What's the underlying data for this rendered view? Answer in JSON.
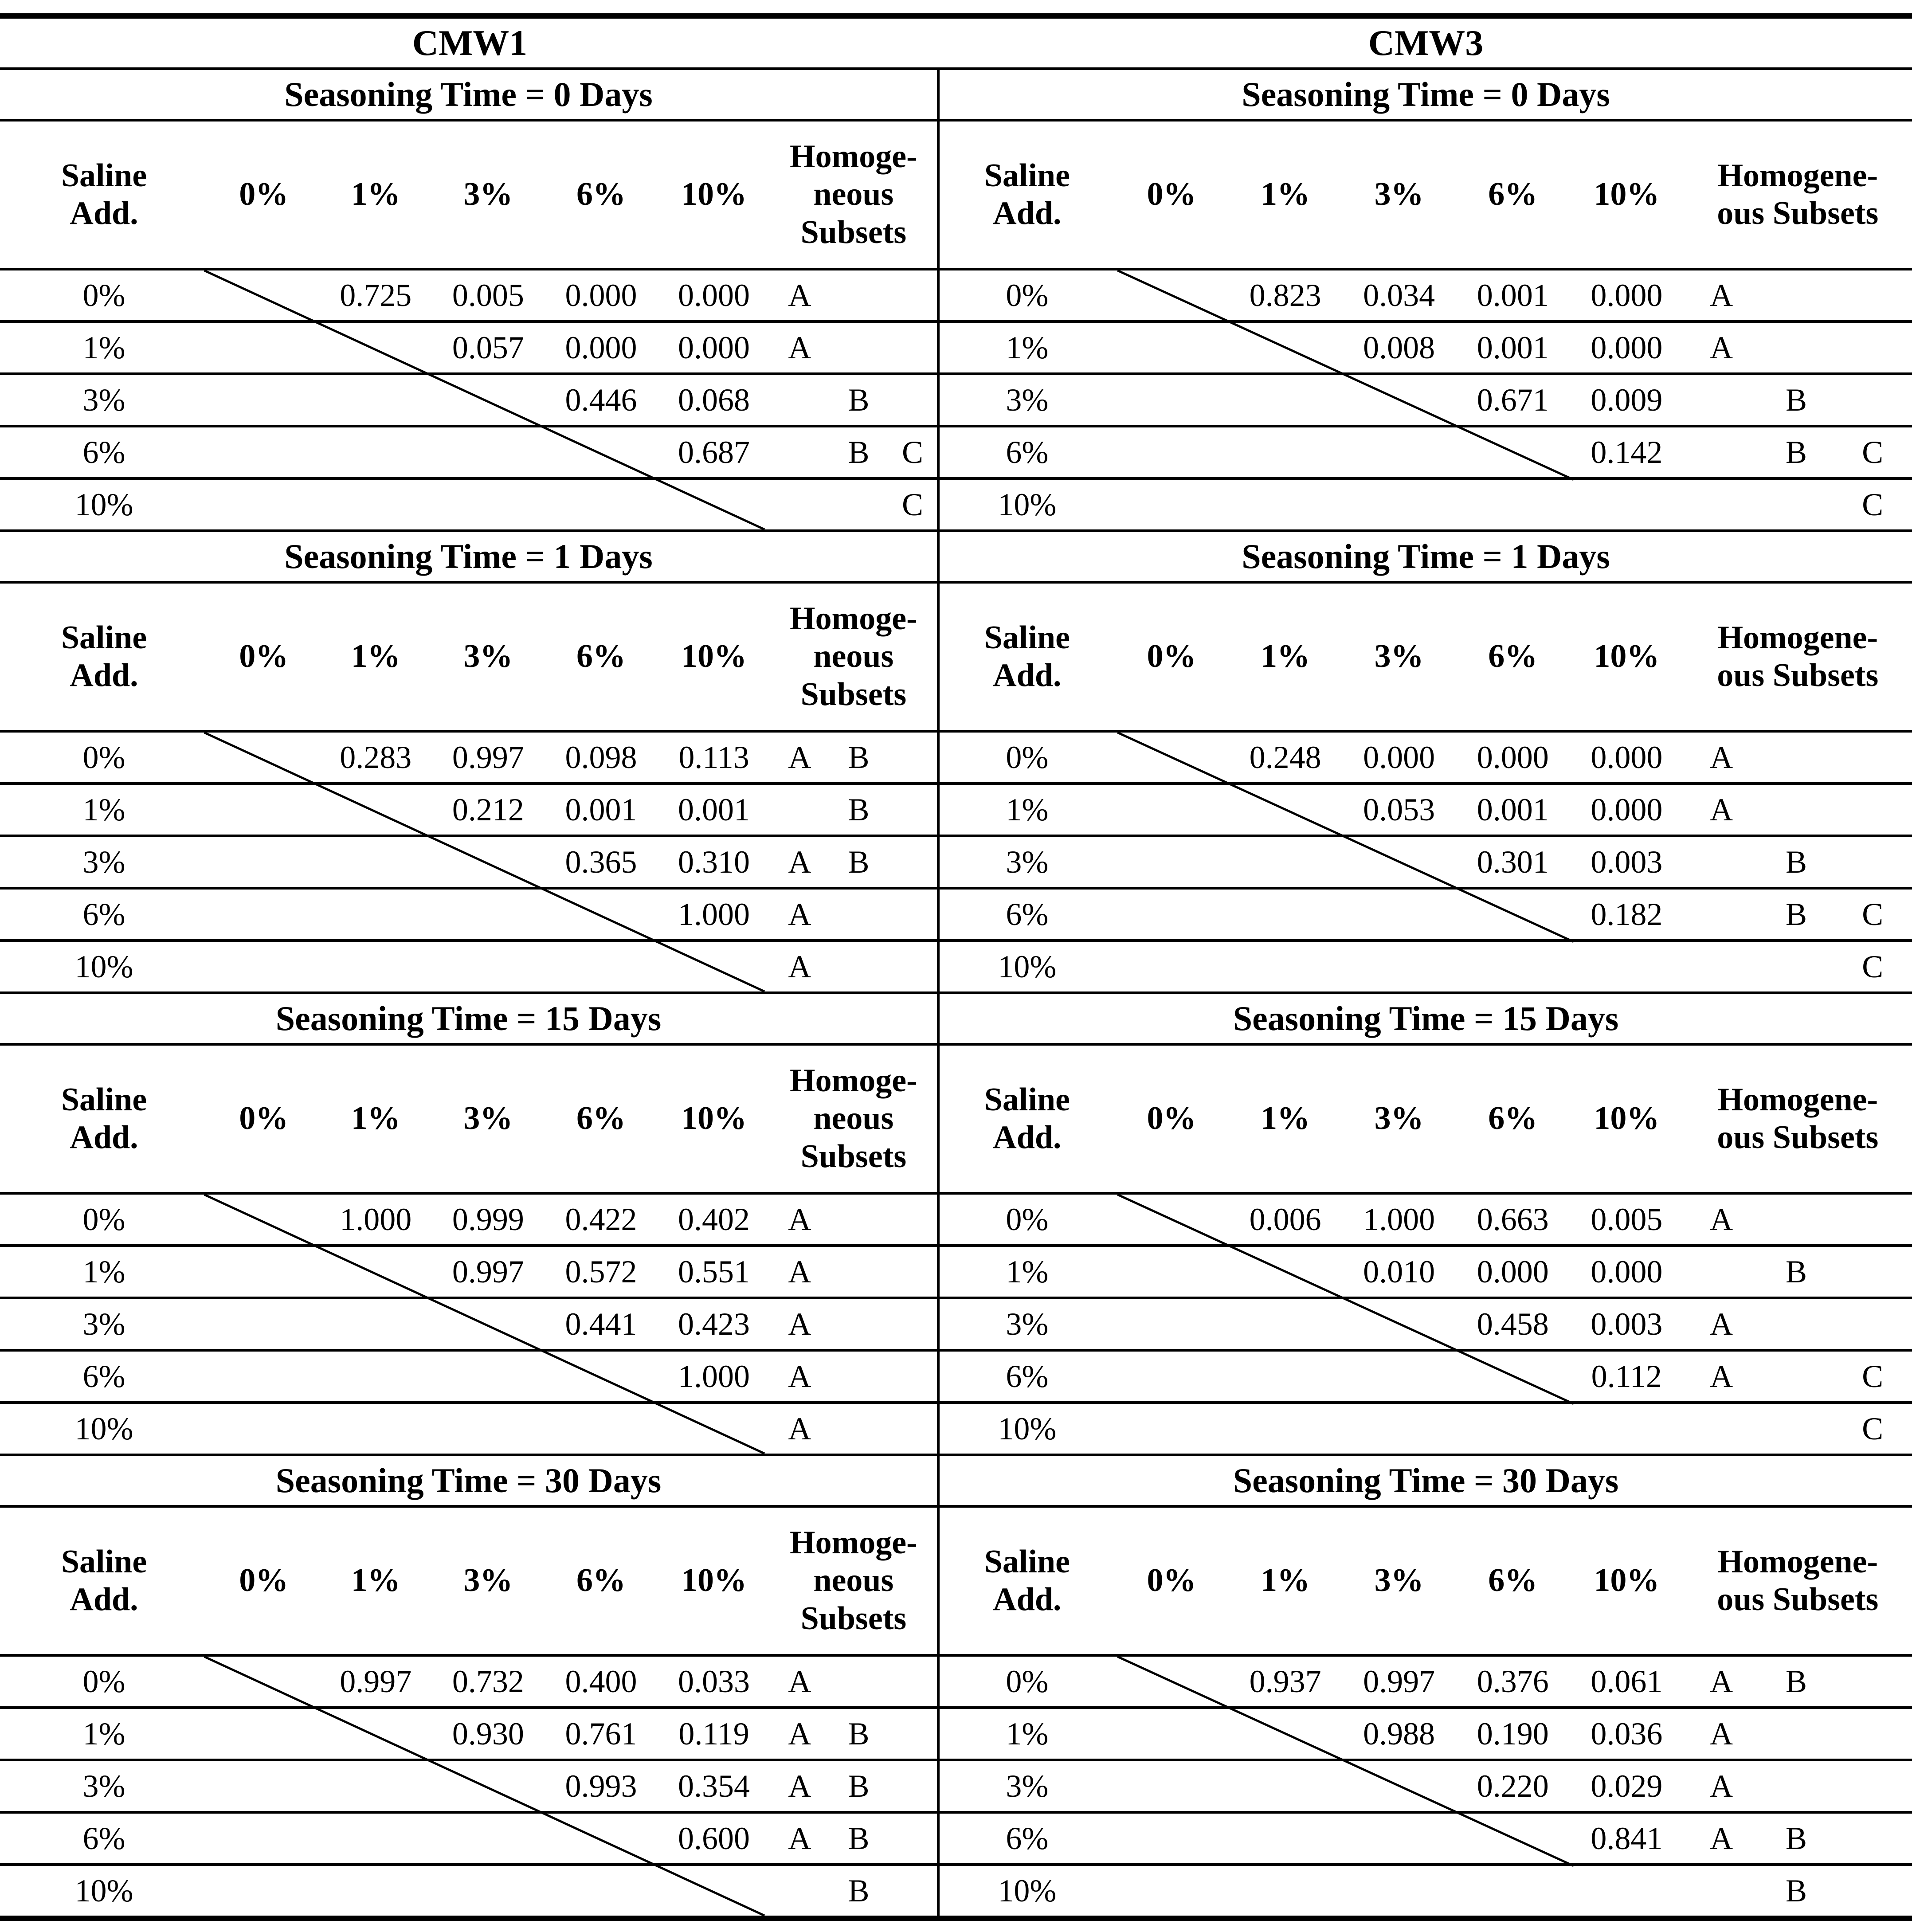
{
  "table": {
    "panels": [
      {
        "title": "CMW1",
        "header": {
          "saline_lines": [
            "Saline",
            "Add."
          ],
          "percent_cols": [
            "0%",
            "1%",
            "3%",
            "6%",
            "10%"
          ],
          "subsets_lines": [
            "Homoge-",
            "neous",
            "Subsets"
          ]
        },
        "sections": [
          {
            "title": "Seasoning Time = 0 Days",
            "rows": [
              {
                "label": "0%",
                "values": [
                  "",
                  "0.725",
                  "0.005",
                  "0.000",
                  "0.000"
                ],
                "subsets": [
                  "A",
                  "",
                  ""
                ]
              },
              {
                "label": "1%",
                "values": [
                  "",
                  "",
                  "0.057",
                  "0.000",
                  "0.000"
                ],
                "subsets": [
                  "A",
                  "",
                  ""
                ]
              },
              {
                "label": "3%",
                "values": [
                  "",
                  "",
                  "",
                  "0.446",
                  "0.068"
                ],
                "subsets": [
                  "",
                  "B",
                  ""
                ]
              },
              {
                "label": "6%",
                "values": [
                  "",
                  "",
                  "",
                  "",
                  "0.687"
                ],
                "subsets": [
                  "",
                  "B",
                  "C"
                ]
              },
              {
                "label": "10%",
                "values": [
                  "",
                  "",
                  "",
                  "",
                  ""
                ],
                "subsets": [
                  "",
                  "",
                  "C"
                ]
              }
            ]
          },
          {
            "title": "Seasoning Time = 1 Days",
            "rows": [
              {
                "label": "0%",
                "values": [
                  "",
                  "0.283",
                  "0.997",
                  "0.098",
                  "0.113"
                ],
                "subsets": [
                  "A",
                  "B",
                  ""
                ]
              },
              {
                "label": "1%",
                "values": [
                  "",
                  "",
                  "0.212",
                  "0.001",
                  "0.001"
                ],
                "subsets": [
                  "",
                  "B",
                  ""
                ]
              },
              {
                "label": "3%",
                "values": [
                  "",
                  "",
                  "",
                  "0.365",
                  "0.310"
                ],
                "subsets": [
                  "A",
                  "B",
                  ""
                ]
              },
              {
                "label": "6%",
                "values": [
                  "",
                  "",
                  "",
                  "",
                  "1.000"
                ],
                "subsets": [
                  "A",
                  "",
                  ""
                ]
              },
              {
                "label": "10%",
                "values": [
                  "",
                  "",
                  "",
                  "",
                  ""
                ],
                "subsets": [
                  "A",
                  "",
                  ""
                ]
              }
            ]
          },
          {
            "title": "Seasoning Time = 15 Days",
            "rows": [
              {
                "label": "0%",
                "values": [
                  "",
                  "1.000",
                  "0.999",
                  "0.422",
                  "0.402"
                ],
                "subsets": [
                  "A",
                  "",
                  ""
                ]
              },
              {
                "label": "1%",
                "values": [
                  "",
                  "",
                  "0.997",
                  "0.572",
                  "0.551"
                ],
                "subsets": [
                  "A",
                  "",
                  ""
                ]
              },
              {
                "label": "3%",
                "values": [
                  "",
                  "",
                  "",
                  "0.441",
                  "0.423"
                ],
                "subsets": [
                  "A",
                  "",
                  ""
                ]
              },
              {
                "label": "6%",
                "values": [
                  "",
                  "",
                  "",
                  "",
                  "1.000"
                ],
                "subsets": [
                  "A",
                  "",
                  ""
                ]
              },
              {
                "label": "10%",
                "values": [
                  "",
                  "",
                  "",
                  "",
                  ""
                ],
                "subsets": [
                  "A",
                  "",
                  ""
                ]
              }
            ]
          },
          {
            "title": "Seasoning Time = 30 Days",
            "rows": [
              {
                "label": "0%",
                "values": [
                  "",
                  "0.997",
                  "0.732",
                  "0.400",
                  "0.033"
                ],
                "subsets": [
                  "A",
                  "",
                  ""
                ]
              },
              {
                "label": "1%",
                "values": [
                  "",
                  "",
                  "0.930",
                  "0.761",
                  "0.119"
                ],
                "subsets": [
                  "A",
                  "B",
                  ""
                ]
              },
              {
                "label": "3%",
                "values": [
                  "",
                  "",
                  "",
                  "0.993",
                  "0.354"
                ],
                "subsets": [
                  "A",
                  "B",
                  ""
                ]
              },
              {
                "label": "6%",
                "values": [
                  "",
                  "",
                  "",
                  "",
                  "0.600"
                ],
                "subsets": [
                  "A",
                  "B",
                  ""
                ]
              },
              {
                "label": "10%",
                "values": [
                  "",
                  "",
                  "",
                  "",
                  ""
                ],
                "subsets": [
                  "",
                  "B",
                  ""
                ]
              }
            ]
          }
        ]
      },
      {
        "title": "CMW3",
        "header": {
          "saline_lines": [
            "Saline",
            "Add."
          ],
          "percent_cols": [
            "0%",
            "1%",
            "3%",
            "6%",
            "10%"
          ],
          "subsets_lines": [
            "Homogene-",
            "ous Subsets"
          ]
        },
        "sections": [
          {
            "title": "Seasoning Time = 0 Days",
            "rows": [
              {
                "label": "0%",
                "values": [
                  "",
                  "0.823",
                  "0.034",
                  "0.001",
                  "0.000"
                ],
                "subsets": [
                  "A",
                  "",
                  ""
                ]
              },
              {
                "label": "1%",
                "values": [
                  "",
                  "",
                  "0.008",
                  "0.001",
                  "0.000"
                ],
                "subsets": [
                  "A",
                  "",
                  ""
                ]
              },
              {
                "label": "3%",
                "values": [
                  "",
                  "",
                  "",
                  "0.671",
                  "0.009"
                ],
                "subsets": [
                  "",
                  "B",
                  ""
                ]
              },
              {
                "label": "6%",
                "values": [
                  "",
                  "",
                  "",
                  "",
                  "0.142"
                ],
                "subsets": [
                  "",
                  "B",
                  "C"
                ]
              },
              {
                "label": "10%",
                "values": [
                  "",
                  "",
                  "",
                  "",
                  ""
                ],
                "subsets": [
                  "",
                  "",
                  "C"
                ]
              }
            ]
          },
          {
            "title": "Seasoning Time = 1 Days",
            "rows": [
              {
                "label": "0%",
                "values": [
                  "",
                  "0.248",
                  "0.000",
                  "0.000",
                  "0.000"
                ],
                "subsets": [
                  "A",
                  "",
                  ""
                ]
              },
              {
                "label": "1%",
                "values": [
                  "",
                  "",
                  "0.053",
                  "0.001",
                  "0.000"
                ],
                "subsets": [
                  "A",
                  "",
                  ""
                ]
              },
              {
                "label": "3%",
                "values": [
                  "",
                  "",
                  "",
                  "0.301",
                  "0.003"
                ],
                "subsets": [
                  "",
                  "B",
                  ""
                ]
              },
              {
                "label": "6%",
                "values": [
                  "",
                  "",
                  "",
                  "",
                  "0.182"
                ],
                "subsets": [
                  "",
                  "B",
                  "C"
                ]
              },
              {
                "label": "10%",
                "values": [
                  "",
                  "",
                  "",
                  "",
                  ""
                ],
                "subsets": [
                  "",
                  "",
                  "C"
                ]
              }
            ]
          },
          {
            "title": "Seasoning Time = 15 Days",
            "rows": [
              {
                "label": "0%",
                "values": [
                  "",
                  "0.006",
                  "1.000",
                  "0.663",
                  "0.005"
                ],
                "subsets": [
                  "A",
                  "",
                  ""
                ]
              },
              {
                "label": "1%",
                "values": [
                  "",
                  "",
                  "0.010",
                  "0.000",
                  "0.000"
                ],
                "subsets": [
                  "",
                  "B",
                  ""
                ]
              },
              {
                "label": "3%",
                "values": [
                  "",
                  "",
                  "",
                  "0.458",
                  "0.003"
                ],
                "subsets": [
                  "A",
                  "",
                  ""
                ]
              },
              {
                "label": "6%",
                "values": [
                  "",
                  "",
                  "",
                  "",
                  "0.112"
                ],
                "subsets": [
                  "A",
                  "",
                  "C"
                ]
              },
              {
                "label": "10%",
                "values": [
                  "",
                  "",
                  "",
                  "",
                  ""
                ],
                "subsets": [
                  "",
                  "",
                  "C"
                ]
              }
            ]
          },
          {
            "title": "Seasoning Time = 30 Days",
            "rows": [
              {
                "label": "0%",
                "values": [
                  "",
                  "0.937",
                  "0.997",
                  "0.376",
                  "0.061"
                ],
                "subsets": [
                  "A",
                  "B",
                  ""
                ]
              },
              {
                "label": "1%",
                "values": [
                  "",
                  "",
                  "0.988",
                  "0.190",
                  "0.036"
                ],
                "subsets": [
                  "A",
                  "",
                  ""
                ]
              },
              {
                "label": "3%",
                "values": [
                  "",
                  "",
                  "",
                  "0.220",
                  "0.029"
                ],
                "subsets": [
                  "A",
                  "",
                  ""
                ]
              },
              {
                "label": "6%",
                "values": [
                  "",
                  "",
                  "",
                  "",
                  "0.841"
                ],
                "subsets": [
                  "A",
                  "B",
                  ""
                ]
              },
              {
                "label": "10%",
                "values": [
                  "",
                  "",
                  "",
                  "",
                  ""
                ],
                "subsets": [
                  "",
                  "B",
                  ""
                ]
              }
            ]
          }
        ]
      }
    ]
  }
}
